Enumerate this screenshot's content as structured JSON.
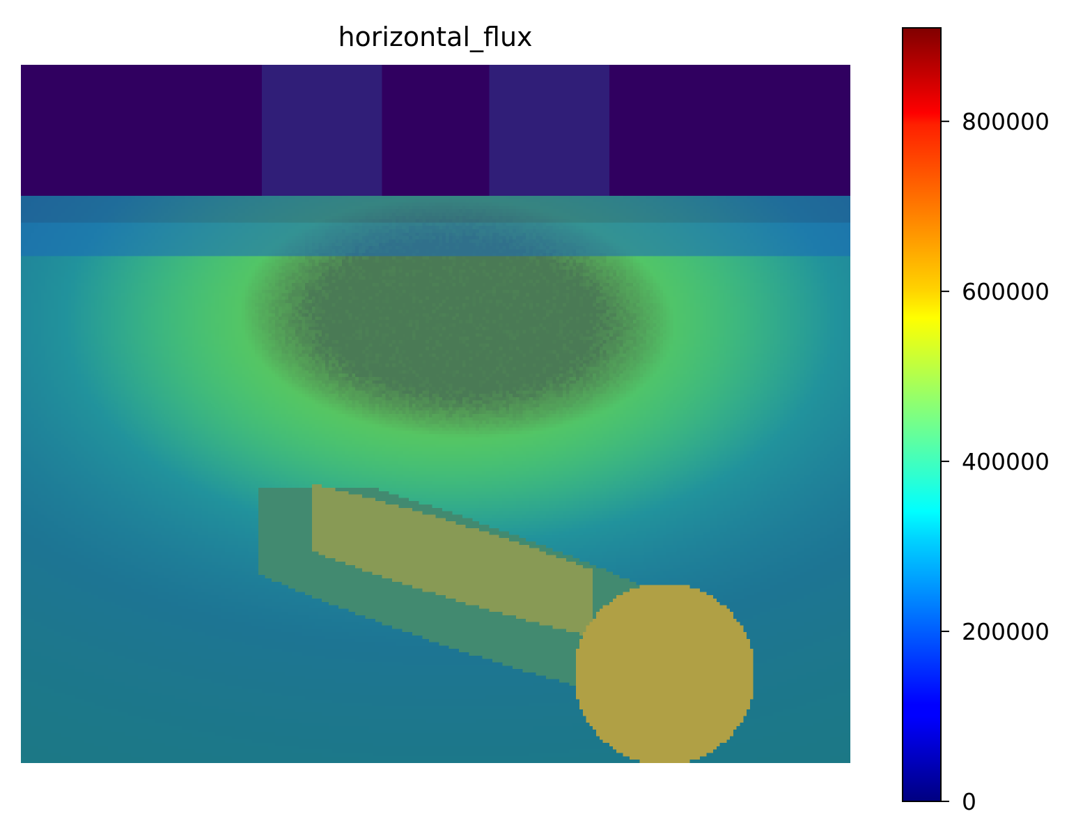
{
  "chart_data": {
    "type": "heatmap",
    "title": "horizontal_flux",
    "xlabel": "",
    "ylabel": "",
    "axes_visible": false,
    "colormap": "jet",
    "colorbar": {
      "orientation": "vertical",
      "placement": "right",
      "range": [
        0,
        910000
      ],
      "ticks": [
        0,
        200000,
        400000,
        600000,
        800000
      ],
      "tick_labels": [
        "0",
        "200000",
        "400000",
        "600000",
        "800000"
      ]
    },
    "overlay_colors": {
      "top_band": "#300060",
      "top_band_light": "#301e78",
      "source_strip_top": "#1e4e98",
      "source_strip_bottom": "#1a68b8",
      "background": "#1c7a80",
      "flux_blob_core": "#4a7a55",
      "elongated_outer": "#428a70",
      "elongated_inner": "#889a55",
      "circle": "#b0a045"
    },
    "heatmap_shape": [
      208,
      248
    ]
  }
}
